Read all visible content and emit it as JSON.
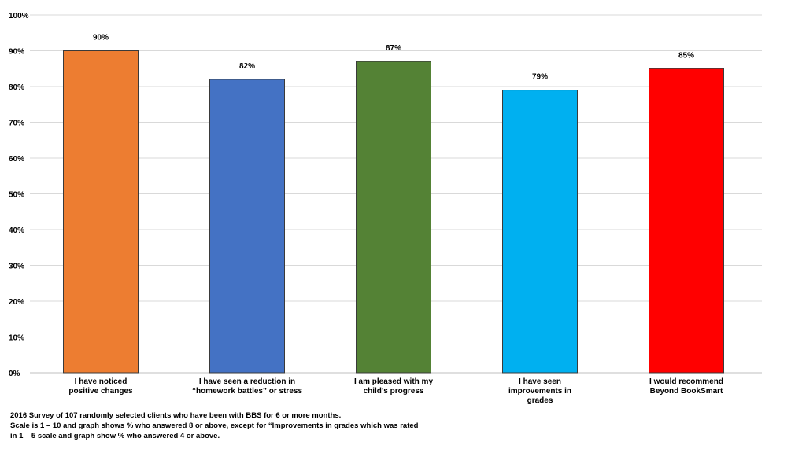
{
  "chart_data": {
    "type": "bar",
    "categories": [
      [
        "I have noticed",
        "positive changes"
      ],
      [
        "I have seen a reduction in",
        "“homework battles” or stress"
      ],
      [
        "I am pleased with my",
        "child’s progress"
      ],
      [
        "I have seen",
        "improvements in",
        "grades"
      ],
      [
        "I would recommend",
        "Beyond BookSmart"
      ]
    ],
    "values": [
      90,
      82,
      87,
      79,
      85
    ],
    "data_labels": [
      "90%",
      "82%",
      "87%",
      "79%",
      "85%"
    ],
    "colors": [
      "#ED7D31",
      "#4472C4",
      "#548235",
      "#00B0F0",
      "#FF0000"
    ],
    "yticks": [
      "0%",
      "10%",
      "20%",
      "30%",
      "40%",
      "50%",
      "60%",
      "70%",
      "80%",
      "90%",
      "100%"
    ],
    "ylim": [
      0,
      100
    ],
    "grid": true,
    "title": "",
    "xlabel": "",
    "ylabel": ""
  },
  "footnote": {
    "line1": "2016 Survey of 107 randomly selected clients who have been with BBS for 6 or more months.",
    "line2": "Scale is 1 – 10 and graph shows % who answered 8 or above, except for “Improvements in grades which was rated",
    "line3": "in 1 – 5 scale and graph show % who answered 4 or above."
  }
}
